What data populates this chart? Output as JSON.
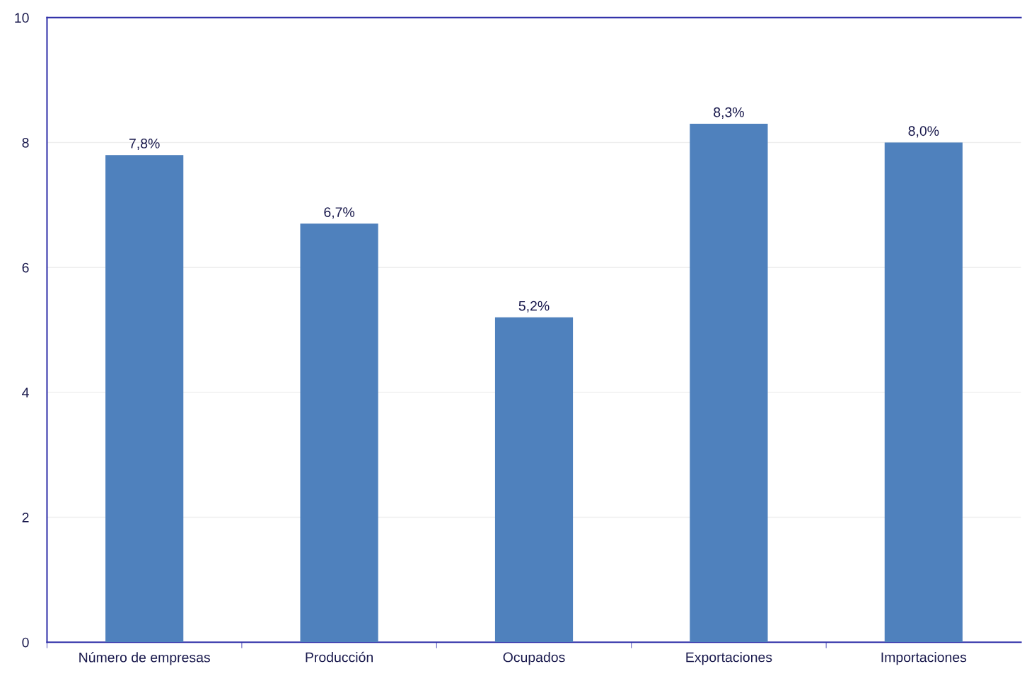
{
  "chart_data": {
    "type": "bar",
    "categories": [
      "Número de empresas",
      "Producción",
      "Ocupados",
      "Exportaciones",
      "Importaciones"
    ],
    "values": [
      7.8,
      6.7,
      5.2,
      8.3,
      8.0
    ],
    "value_labels": [
      "7,8%",
      "6,7%",
      "5,2%",
      "8,3%",
      "8,0%"
    ],
    "color": "#4f81bd",
    "ylim": [
      0,
      10
    ],
    "yticks": [
      0,
      2,
      4,
      6,
      8,
      10
    ],
    "grid": "y"
  }
}
